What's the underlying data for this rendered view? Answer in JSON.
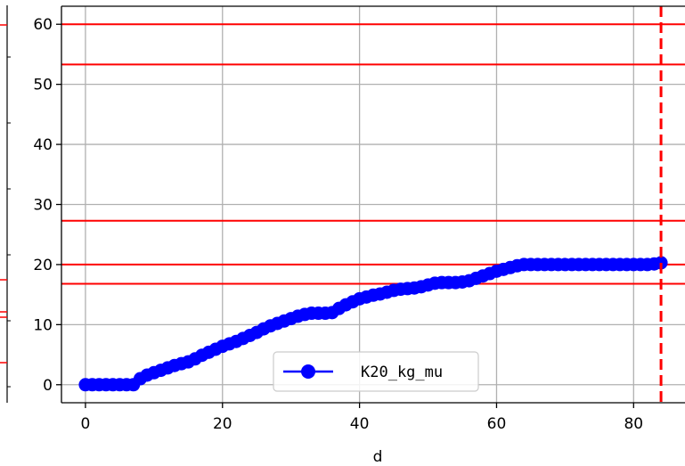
{
  "chart_data": {
    "type": "line",
    "xlabel": "d",
    "ylabel": "",
    "xlim": [
      -3.5,
      87.5
    ],
    "ylim": [
      -3.0,
      63.0
    ],
    "x_ticks": [
      0,
      20,
      40,
      60,
      80
    ],
    "y_ticks": [
      0,
      10,
      20,
      30,
      40,
      50,
      60
    ],
    "grid": true,
    "legend_position": "lower-center",
    "series": [
      {
        "name": "K20_kg_mu",
        "color": "#0000ff",
        "marker": "circle",
        "x": [
          0,
          1,
          2,
          3,
          4,
          5,
          6,
          7,
          8,
          9,
          10,
          11,
          12,
          13,
          14,
          15,
          16,
          17,
          18,
          19,
          20,
          21,
          22,
          23,
          24,
          25,
          26,
          27,
          28,
          29,
          30,
          31,
          32,
          33,
          34,
          35,
          36,
          37,
          38,
          39,
          40,
          41,
          42,
          43,
          44,
          45,
          46,
          47,
          48,
          49,
          50,
          51,
          52,
          53,
          54,
          55,
          56,
          57,
          58,
          59,
          60,
          61,
          62,
          63,
          64,
          65,
          66,
          67,
          68,
          69,
          70,
          71,
          72,
          73,
          74,
          75,
          76,
          77,
          78,
          79,
          80,
          81,
          82,
          83,
          84
        ],
        "y": [
          0,
          0,
          0,
          0,
          0,
          0,
          0,
          0,
          1,
          1.6,
          2,
          2.4,
          2.8,
          3.2,
          3.5,
          3.8,
          4.3,
          4.9,
          5.4,
          5.9,
          6.4,
          6.8,
          7.2,
          7.7,
          8.2,
          8.7,
          9.3,
          9.8,
          10.2,
          10.6,
          11,
          11.4,
          11.7,
          11.9,
          11.9,
          11.9,
          12,
          12.7,
          13.3,
          13.8,
          14.3,
          14.6,
          14.9,
          15.1,
          15.4,
          15.7,
          15.9,
          16,
          16.1,
          16.3,
          16.6,
          16.9,
          17,
          17,
          17,
          17.1,
          17.3,
          17.7,
          18.1,
          18.5,
          18.9,
          19.2,
          19.5,
          19.8,
          20,
          20,
          20,
          20,
          20,
          20,
          20,
          20,
          20,
          20,
          20,
          20,
          20,
          20,
          20,
          20,
          20,
          20,
          20,
          20.1,
          20.3
        ]
      }
    ],
    "reference_lines": {
      "horizontal": [
        60,
        53.3,
        27.3,
        20,
        16.8
      ],
      "horizontal_color": "#ff0000",
      "vertical": [
        84
      ],
      "vertical_color": "#ff0000",
      "vertical_style": "dashed"
    }
  }
}
